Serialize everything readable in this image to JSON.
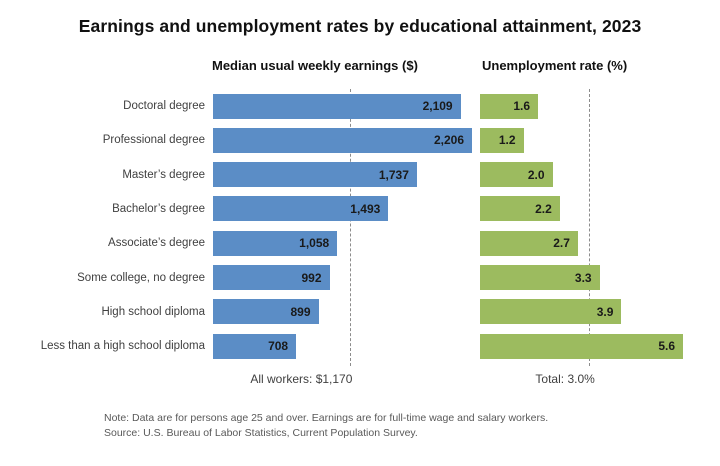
{
  "title": "Earnings and unemployment rates by educational attainment, 2023",
  "chart_data": {
    "type": "bar",
    "orientation": "horizontal",
    "grid": false,
    "legend": "none",
    "categories": [
      "Doctoral degree",
      "Professional degree",
      "Master’s degree",
      "Bachelor’s degree",
      "Associate’s degree",
      "Some college, no degree",
      "High school diploma",
      "Less than a high school diploma"
    ],
    "series": [
      {
        "name": "Median usual weekly earnings ($)",
        "values": [
          2109,
          2206,
          1737,
          1493,
          1058,
          992,
          899,
          708
        ],
        "labels": [
          "2,109",
          "2,206",
          "1,737",
          "1,493",
          "1,058",
          "992",
          "899",
          "708"
        ],
        "color": "#5b8dc6",
        "xlim": [
          0,
          2206
        ],
        "reference": {
          "label": "All workers: $1,170",
          "value": 1170
        }
      },
      {
        "name": "Unemployment rate (%)",
        "values": [
          1.6,
          1.2,
          2.0,
          2.2,
          2.7,
          3.3,
          3.9,
          5.6
        ],
        "labels": [
          "1.6",
          "1.2",
          "2.0",
          "2.2",
          "2.7",
          "3.3",
          "3.9",
          "5.6"
        ],
        "color": "#9cbb5f",
        "xlim": [
          0,
          5.6
        ],
        "reference": {
          "label": "Total: 3.0%",
          "value": 3.0
        }
      }
    ],
    "reference_line_color": "#8c8c8c",
    "notes": [
      "Note: Data are for persons age 25 and over. Earnings are for full-time wage and salary workers.",
      "Source: U.S. Bureau of Labor Statistics, Current Population Survey."
    ]
  }
}
